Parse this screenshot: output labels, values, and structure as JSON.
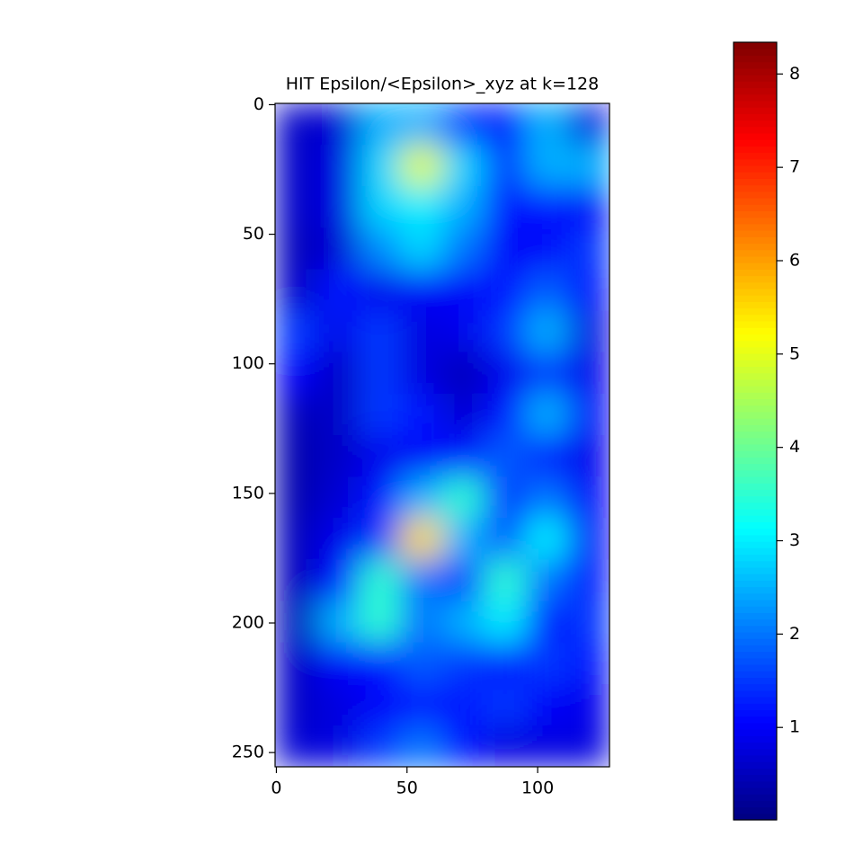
{
  "chart_data": {
    "type": "heatmap",
    "title": "HIT Epsilon/<Epsilon>_xyz at k=128",
    "colormap": "jet",
    "x_edges": [
      -0.5,
      15.5,
      31.5,
      47.5,
      63.5,
      79.5,
      95.5,
      111.5,
      127.5
    ],
    "y_edges": [
      -0.5,
      15.5,
      31.5,
      47.5,
      63.5,
      79.5,
      95.5,
      111.5,
      127.5,
      143.5,
      159.5,
      175.5,
      191.5,
      207.5,
      223.5,
      239.5,
      255.5
    ],
    "values": [
      [
        0.6,
        0.7,
        2.5,
        2.5,
        1.5,
        1.2,
        2.5,
        0.8
      ],
      [
        0.6,
        0.8,
        2.8,
        5.0,
        2.8,
        1.5,
        2.5,
        2.5
      ],
      [
        0.6,
        0.8,
        2.8,
        3.0,
        2.5,
        1.2,
        1.2,
        1.0
      ],
      [
        0.5,
        0.7,
        2.2,
        2.8,
        2.0,
        1.0,
        1.0,
        1.5
      ],
      [
        0.6,
        1.2,
        0.9,
        1.0,
        1.0,
        1.2,
        1.8,
        1.2
      ],
      [
        1.5,
        0.9,
        1.5,
        0.8,
        0.9,
        1.5,
        2.5,
        0.8
      ],
      [
        1.0,
        0.6,
        1.5,
        0.8,
        0.5,
        0.9,
        1.5,
        0.9
      ],
      [
        0.5,
        0.6,
        1.5,
        1.2,
        0.7,
        1.2,
        2.5,
        1.0
      ],
      [
        0.4,
        0.6,
        0.9,
        1.0,
        1.2,
        1.8,
        1.2,
        0.9
      ],
      [
        0.4,
        0.7,
        1.2,
        2.5,
        3.5,
        1.5,
        2.0,
        1.0
      ],
      [
        0.5,
        0.9,
        1.5,
        5.5,
        2.5,
        1.8,
        3.0,
        1.0
      ],
      [
        0.5,
        1.2,
        3.5,
        2.0,
        1.5,
        3.5,
        2.0,
        1.2
      ],
      [
        0.5,
        2.5,
        3.5,
        2.0,
        2.5,
        3.0,
        1.2,
        1.5
      ],
      [
        0.6,
        1.0,
        1.2,
        1.8,
        1.5,
        1.2,
        1.5,
        1.2
      ],
      [
        0.6,
        0.8,
        1.0,
        1.2,
        1.2,
        1.5,
        1.0,
        0.9
      ],
      [
        0.7,
        0.8,
        1.5,
        2.0,
        1.2,
        0.8,
        0.8,
        0.8
      ]
    ],
    "xlim": [
      -0.5,
      127.5
    ],
    "ylim": [
      255.5,
      -0.5
    ],
    "xticks": [
      0,
      50,
      100
    ],
    "yticks": [
      0,
      50,
      100,
      150,
      200,
      250
    ],
    "clim": [
      0.01,
      8.34
    ],
    "cticks": [
      1,
      2,
      3,
      4,
      5,
      6,
      7,
      8
    ]
  }
}
